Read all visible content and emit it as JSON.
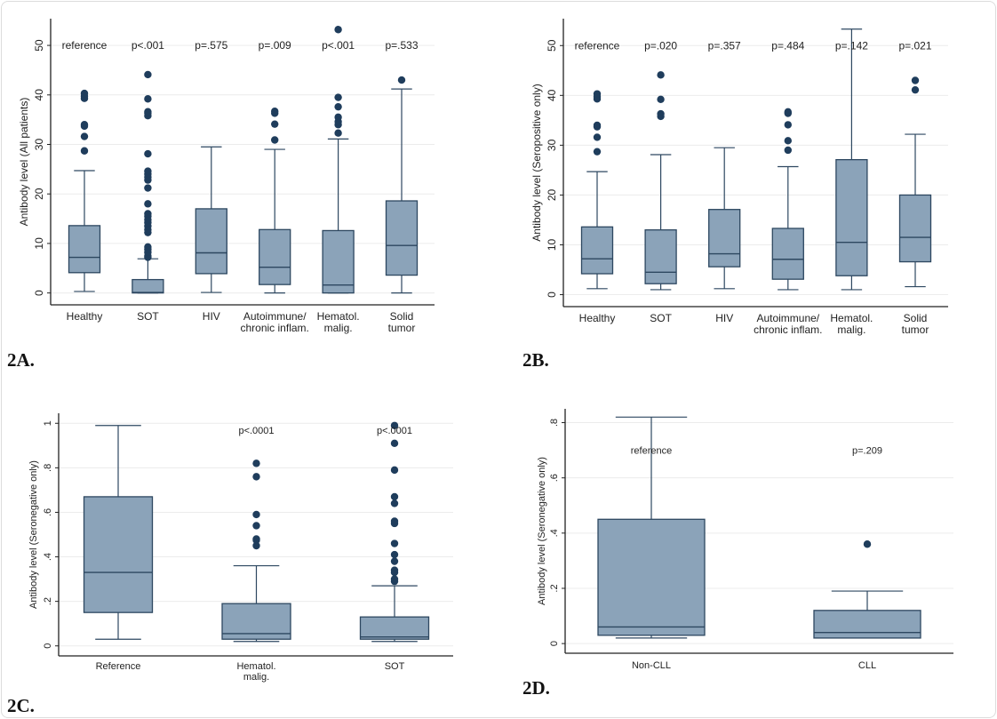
{
  "colors": {
    "box_fill": "#8ba3b9",
    "box_stroke": "#2d4760",
    "outlier": "#1f3d5c",
    "grid": "#ececec",
    "axis": "#222222"
  },
  "chart_data": [
    {
      "type": "box",
      "panel_label": "2A.",
      "ylabel": "Antibody level (All patients)",
      "ylim": [
        -2.4,
        55.4
      ],
      "yticks": [
        0,
        10,
        20,
        30,
        40,
        50
      ],
      "ytick_labels": [
        "0",
        "10",
        "20",
        "30",
        "40",
        "50"
      ],
      "grid": true,
      "annotation_y": 50,
      "categories": [
        {
          "label": [
            "Healthy"
          ],
          "annotation": "reference",
          "low": 0.3,
          "q1": 4.1,
          "median": 7.2,
          "q3": 13.6,
          "high": 24.7,
          "outliers": [
            28.7,
            31.6,
            33.7,
            34.0,
            39.3,
            39.7,
            40.3
          ]
        },
        {
          "label": [
            "SOT"
          ],
          "annotation": "p<.001",
          "low": 0,
          "q1": 0,
          "median": 0.1,
          "q3": 2.7,
          "high": 6.9,
          "outliers": [
            7.2,
            7.5,
            8.2,
            8.8,
            9.3,
            12.2,
            12.8,
            13.5,
            14.2,
            14.8,
            15.5,
            16.0,
            18.0,
            21.2,
            22.8,
            23.4,
            24.0,
            24.6,
            28.1,
            35.8,
            36.3,
            36.6,
            39.2,
            44.1
          ]
        },
        {
          "label": [
            "HIV"
          ],
          "annotation": "p=.575",
          "low": 0.1,
          "q1": 3.9,
          "median": 8.1,
          "q3": 17.0,
          "high": 29.5,
          "outliers": []
        },
        {
          "label": [
            "Autoimmune/",
            "chronic inflam."
          ],
          "annotation": "p=.009",
          "low": 0,
          "q1": 1.7,
          "median": 5.2,
          "q3": 12.8,
          "high": 29.0,
          "outliers": [
            30.9,
            34.1,
            36.3,
            36.7
          ]
        },
        {
          "label": [
            "Hematol.",
            "malig."
          ],
          "annotation": "p<.001",
          "low": 0,
          "q1": 0,
          "median": 1.6,
          "q3": 12.6,
          "high": 31.1,
          "outliers": [
            32.3,
            34.0,
            34.6,
            35.5,
            37.6,
            39.5,
            53.2
          ]
        },
        {
          "label": [
            "Solid",
            "tumor"
          ],
          "annotation": "p=.533",
          "low": 0,
          "q1": 3.6,
          "median": 9.6,
          "q3": 18.6,
          "high": 41.2,
          "outliers": [
            43.0
          ]
        }
      ]
    },
    {
      "type": "box",
      "panel_label": "2B.",
      "ylabel": "Antibody level (Seropositive only)",
      "ylim": [
        -2.4,
        55.4
      ],
      "yticks": [
        0,
        10,
        20,
        30,
        40,
        50
      ],
      "ytick_labels": [
        "0",
        "10",
        "20",
        "30",
        "40",
        "50"
      ],
      "grid": true,
      "annotation_y": 50,
      "categories": [
        {
          "label": [
            "Healthy"
          ],
          "annotation": "reference",
          "low": 1.2,
          "q1": 4.2,
          "median": 7.2,
          "q3": 13.6,
          "high": 24.7,
          "outliers": [
            28.7,
            31.6,
            33.7,
            34.0,
            39.3,
            39.7,
            40.3
          ]
        },
        {
          "label": [
            "SOT"
          ],
          "annotation": "p=.020",
          "low": 1.0,
          "q1": 2.2,
          "median": 4.5,
          "q3": 13.0,
          "high": 28.1,
          "outliers": [
            35.8,
            36.3,
            39.2,
            44.1
          ]
        },
        {
          "label": [
            "HIV"
          ],
          "annotation": "p=.357",
          "low": 1.2,
          "q1": 5.6,
          "median": 8.2,
          "q3": 17.1,
          "high": 29.5,
          "outliers": []
        },
        {
          "label": [
            "Autoimmune/",
            "chronic inflam."
          ],
          "annotation": "p=.484",
          "low": 1.0,
          "q1": 3.1,
          "median": 7.1,
          "q3": 13.3,
          "high": 25.7,
          "outliers": [
            29.0,
            30.9,
            34.1,
            36.4,
            36.7
          ]
        },
        {
          "label": [
            "Hematol.",
            "malig."
          ],
          "annotation": "p=.142",
          "low": 1.0,
          "q1": 3.8,
          "median": 10.5,
          "q3": 27.1,
          "high": 53.3,
          "outliers": []
        },
        {
          "label": [
            "Solid",
            "tumor"
          ],
          "annotation": "p=.021",
          "low": 1.6,
          "q1": 6.6,
          "median": 11.5,
          "q3": 20.0,
          "high": 32.2,
          "outliers": [
            41.1,
            43.0
          ]
        }
      ]
    },
    {
      "type": "box",
      "panel_label": "2C.",
      "ylabel": "Antibody level (Seronegative only)",
      "ylim": [
        -0.045,
        1.045
      ],
      "yticks": [
        0,
        0.2,
        0.4,
        0.6,
        0.8,
        1
      ],
      "ytick_labels": [
        "0",
        ".2",
        ".4",
        ".6",
        ".8",
        "1"
      ],
      "grid": true,
      "annotation_y": 0.97,
      "categories": [
        {
          "label": [
            "Reference"
          ],
          "annotation": "",
          "low": 0.03,
          "q1": 0.15,
          "median": 0.33,
          "q3": 0.67,
          "high": 0.99,
          "outliers": []
        },
        {
          "label": [
            "Hematol.",
            "malig."
          ],
          "annotation": "p<.0001",
          "low": 0.02,
          "q1": 0.03,
          "median": 0.055,
          "q3": 0.19,
          "high": 0.36,
          "outliers": [
            0.45,
            0.475,
            0.48,
            0.54,
            0.59,
            0.76,
            0.82
          ]
        },
        {
          "label": [
            "SOT"
          ],
          "annotation": "p<.0001",
          "low": 0.02,
          "q1": 0.03,
          "median": 0.04,
          "q3": 0.13,
          "high": 0.27,
          "outliers": [
            0.29,
            0.3,
            0.33,
            0.34,
            0.38,
            0.41,
            0.46,
            0.55,
            0.56,
            0.64,
            0.67,
            0.79,
            0.91,
            0.99
          ]
        }
      ]
    },
    {
      "type": "box",
      "panel_label": "2D.",
      "ylabel": "Antibody level (Seronegative only)",
      "ylim": [
        -0.035,
        0.85
      ],
      "yticks": [
        0,
        0.2,
        0.4,
        0.6,
        0.8
      ],
      "ytick_labels": [
        "0",
        ".2",
        ".4",
        ".6",
        ".8"
      ],
      "grid": true,
      "annotation_y": 0.7,
      "categories": [
        {
          "label": [
            "Non-CLL"
          ],
          "annotation": "reference",
          "low": 0.02,
          "q1": 0.03,
          "median": 0.06,
          "q3": 0.45,
          "high": 0.82,
          "outliers": []
        },
        {
          "label": [
            "CLL"
          ],
          "annotation": "p=.209",
          "low": 0.02,
          "q1": 0.02,
          "median": 0.04,
          "q3": 0.12,
          "high": 0.19,
          "outliers": [
            0.36
          ]
        }
      ]
    }
  ]
}
